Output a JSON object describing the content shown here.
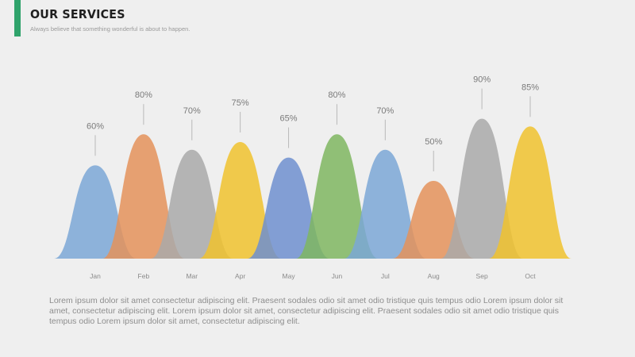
{
  "header": {
    "title": "OUR SERVICES",
    "subtitle": "Always believe that something wonderful is about to happen."
  },
  "chart_data": {
    "type": "area",
    "categories": [
      "Jan",
      "Feb",
      "Mar",
      "Apr",
      "May",
      "Jun",
      "Jul",
      "Aug",
      "Sep",
      "Oct"
    ],
    "values": [
      60,
      80,
      70,
      75,
      65,
      80,
      70,
      50,
      90,
      85
    ],
    "value_labels": [
      "60%",
      "80%",
      "70%",
      "75%",
      "65%",
      "80%",
      "70%",
      "50%",
      "90%",
      "85%"
    ],
    "ylim": [
      0,
      100
    ],
    "grid": false,
    "colors": [
      "#7ba7d6",
      "#e4925a",
      "#a9a9a9",
      "#f0c22e",
      "#6f8fcf",
      "#7fb660",
      "#7ba7d6",
      "#e4925a",
      "#a9a9a9",
      "#f0c22e"
    ]
  },
  "body": {
    "text": "Lorem ipsum dolor sit amet consectetur adipiscing elit. Praesent sodales odio sit amet odio tristique quis tempus odio Lorem ipsum dolor sit amet, consectetur adipiscing elit. Lorem ipsum dolor sit amet, consectetur adipiscing elit. Praesent sodales odio sit amet odio tristique quis tempus odio Lorem ipsum dolor sit amet, consectetur adipiscing elit."
  }
}
